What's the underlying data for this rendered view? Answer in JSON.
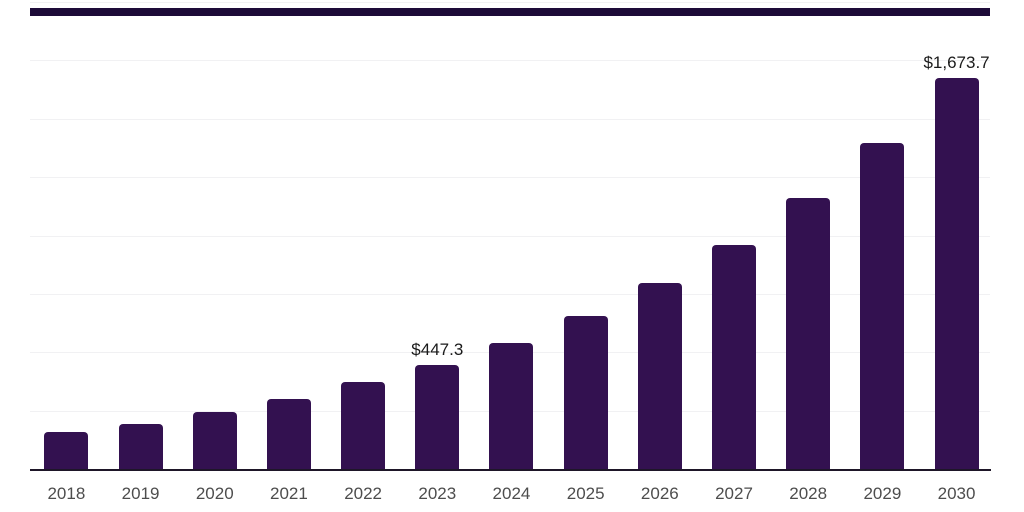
{
  "chart_data": {
    "type": "bar",
    "title": "",
    "xlabel": "",
    "ylabel": "",
    "categories": [
      "2018",
      "2019",
      "2020",
      "2021",
      "2022",
      "2023",
      "2024",
      "2025",
      "2026",
      "2027",
      "2028",
      "2029",
      "2030"
    ],
    "values": [
      158.5,
      192.5,
      244.0,
      300.0,
      370.5,
      447.3,
      540.0,
      655.0,
      796.0,
      959.0,
      1161.0,
      1395.0,
      1673.7
    ],
    "data_labels": [
      {
        "category": "2023",
        "label": "$447.3"
      },
      {
        "category": "2030",
        "label": "$1,673.7"
      }
    ],
    "ylim": [
      0,
      2000
    ],
    "gridline_step": 250,
    "grid": true,
    "legend": false,
    "y_axis_tick_labels_visible": false,
    "colors": {
      "bar": "#331150",
      "top_border": "#1d0b38",
      "gridline": "#f1f1f3",
      "axis_line": "#1e1628",
      "value_label_text": "#1a1a1a",
      "year_label_text": "#4d4d4d"
    }
  }
}
